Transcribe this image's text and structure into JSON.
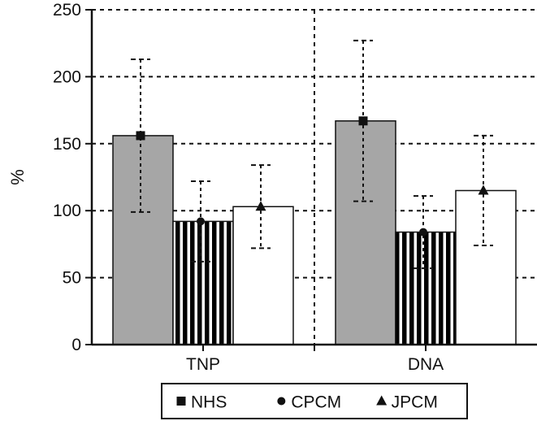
{
  "chart_data": {
    "type": "bar",
    "title": "",
    "xlabel": "",
    "ylabel": "%",
    "ylim": [
      0,
      250
    ],
    "yticks": [
      0,
      50,
      100,
      150,
      200,
      250
    ],
    "grid": "dashed-horizontal",
    "legend_position": "bottom",
    "categories": [
      "TNP",
      "DNA"
    ],
    "series": [
      {
        "name": "NHS",
        "marker": "square",
        "fill": "#a6a6a6",
        "values": [
          156,
          167
        ],
        "errors": [
          57,
          60
        ]
      },
      {
        "name": "CPCM",
        "marker": "circle",
        "fill": "stripes",
        "values": [
          92,
          84
        ],
        "errors": [
          30,
          27
        ]
      },
      {
        "name": "JPCM",
        "marker": "triangle",
        "fill": "#ffffff",
        "values": [
          103,
          115
        ],
        "errors": [
          31,
          41
        ]
      }
    ]
  }
}
